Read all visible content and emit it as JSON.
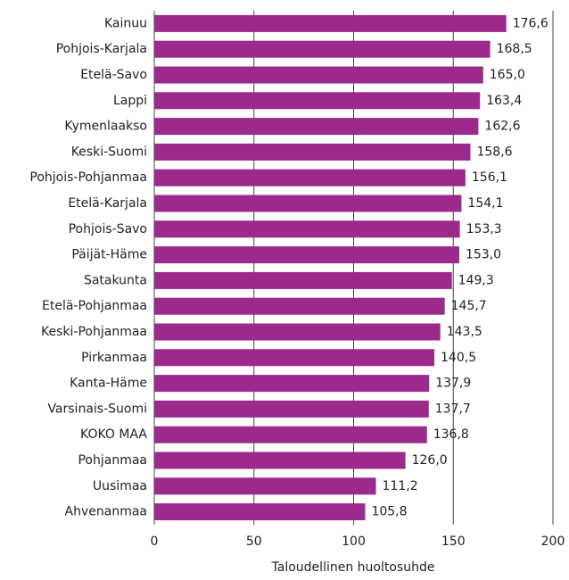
{
  "chart_data": {
    "type": "barh",
    "categories": [
      "Kainuu",
      "Pohjois-Karjala",
      "Etelä-Savo",
      "Lappi",
      "Kymenlaakso",
      "Keski-Suomi",
      "Pohjois-Pohjanmaa",
      "Etelä-Karjala",
      "Pohjois-Savo",
      "Päijät-Häme",
      "Satakunta",
      "Etelä-Pohjanmaa",
      "Keski-Pohjanmaa",
      "Pirkanmaa",
      "Kanta-Häme",
      "Varsinais-Suomi",
      "KOKO MAA",
      "Pohjanmaa",
      "Uusimaa",
      "Ahvenanmaa"
    ],
    "values": [
      176.6,
      168.5,
      165.0,
      163.4,
      162.6,
      158.6,
      156.1,
      154.1,
      153.3,
      153.0,
      149.3,
      145.7,
      143.5,
      140.5,
      137.9,
      137.7,
      136.8,
      126.0,
      111.2,
      105.8
    ],
    "value_labels": [
      "176,6",
      "168,5",
      "165,0",
      "163,4",
      "162,6",
      "158,6",
      "156,1",
      "154,1",
      "153,3",
      "153,0",
      "149,3",
      "145,7",
      "143,5",
      "140,5",
      "137,9",
      "137,7",
      "136,8",
      "126,0",
      "111,2",
      "105,8"
    ],
    "color": "#9c2a8c",
    "xlabel": "Taloudellinen huoltosuhde",
    "xlim": [
      0,
      200
    ],
    "xticks": [
      0,
      50,
      100,
      150,
      200
    ],
    "grid": true
  }
}
